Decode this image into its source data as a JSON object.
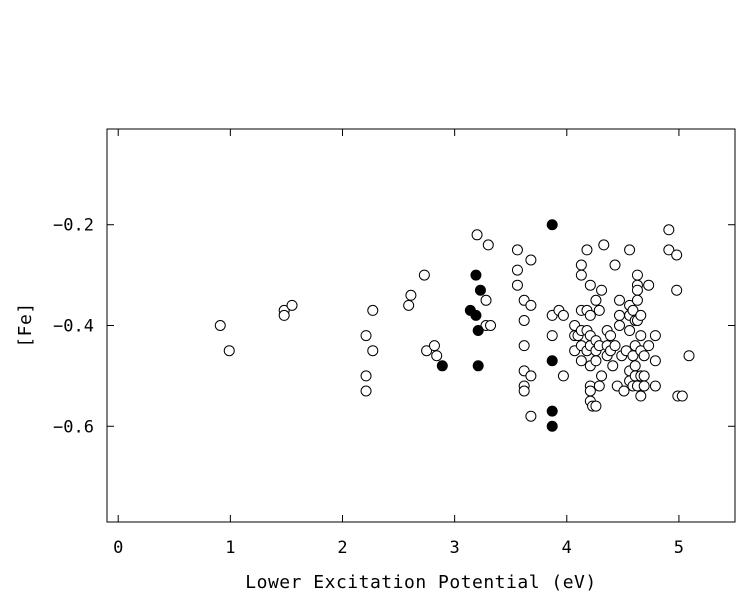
{
  "chart_data": {
    "type": "scatter",
    "title": "",
    "xlabel": "Lower Excitation Potential (eV)",
    "ylabel": "[Fe]",
    "xlim": [
      -0.1,
      5.5
    ],
    "ylim": [
      -0.79,
      -0.01
    ],
    "x_ticks": [
      0,
      1,
      2,
      3,
      4,
      5
    ],
    "x_tick_labels": [
      "0",
      "1",
      "2",
      "3",
      "4",
      "5"
    ],
    "y_ticks": [
      -0.2,
      -0.4,
      -0.6
    ],
    "y_tick_labels": [
      "−0.2",
      "−0.4",
      "−0.6"
    ],
    "grid": false,
    "legend": "none",
    "series": [
      {
        "marker": "open-circle",
        "color": "#000000",
        "points": [
          [
            0.91,
            -0.4
          ],
          [
            0.99,
            -0.45
          ],
          [
            1.48,
            -0.37
          ],
          [
            1.48,
            -0.38
          ],
          [
            1.55,
            -0.36
          ],
          [
            2.21,
            -0.42
          ],
          [
            2.21,
            -0.5
          ],
          [
            2.21,
            -0.53
          ],
          [
            2.27,
            -0.37
          ],
          [
            2.27,
            -0.45
          ],
          [
            2.59,
            -0.36
          ],
          [
            2.61,
            -0.34
          ],
          [
            2.73,
            -0.3
          ],
          [
            2.75,
            -0.45
          ],
          [
            2.82,
            -0.44
          ],
          [
            2.84,
            -0.46
          ],
          [
            3.2,
            -0.22
          ],
          [
            3.28,
            -0.35
          ],
          [
            3.28,
            -0.4
          ],
          [
            3.3,
            -0.24
          ],
          [
            3.32,
            -0.4
          ],
          [
            3.56,
            -0.25
          ],
          [
            3.56,
            -0.29
          ],
          [
            3.56,
            -0.32
          ],
          [
            3.62,
            -0.35
          ],
          [
            3.62,
            -0.39
          ],
          [
            3.62,
            -0.44
          ],
          [
            3.62,
            -0.49
          ],
          [
            3.62,
            -0.52
          ],
          [
            3.62,
            -0.53
          ],
          [
            3.68,
            -0.27
          ],
          [
            3.68,
            -0.36
          ],
          [
            3.68,
            -0.5
          ],
          [
            3.68,
            -0.58
          ],
          [
            3.87,
            -0.38
          ],
          [
            3.87,
            -0.42
          ],
          [
            3.93,
            -0.37
          ],
          [
            3.97,
            -0.38
          ],
          [
            3.97,
            -0.5
          ],
          [
            4.07,
            -0.4
          ],
          [
            4.07,
            -0.42
          ],
          [
            4.07,
            -0.45
          ],
          [
            4.1,
            -0.42
          ],
          [
            4.13,
            -0.28
          ],
          [
            4.13,
            -0.3
          ],
          [
            4.13,
            -0.37
          ],
          [
            4.13,
            -0.41
          ],
          [
            4.13,
            -0.44
          ],
          [
            4.13,
            -0.47
          ],
          [
            4.18,
            -0.25
          ],
          [
            4.18,
            -0.37
          ],
          [
            4.18,
            -0.41
          ],
          [
            4.18,
            -0.45
          ],
          [
            4.21,
            -0.32
          ],
          [
            4.21,
            -0.38
          ],
          [
            4.21,
            -0.42
          ],
          [
            4.21,
            -0.44
          ],
          [
            4.21,
            -0.48
          ],
          [
            4.21,
            -0.52
          ],
          [
            4.21,
            -0.53
          ],
          [
            4.21,
            -0.55
          ],
          [
            4.23,
            -0.56
          ],
          [
            4.26,
            -0.35
          ],
          [
            4.26,
            -0.43
          ],
          [
            4.26,
            -0.45
          ],
          [
            4.26,
            -0.47
          ],
          [
            4.26,
            -0.56
          ],
          [
            4.29,
            -0.37
          ],
          [
            4.29,
            -0.44
          ],
          [
            4.29,
            -0.52
          ],
          [
            4.31,
            -0.33
          ],
          [
            4.31,
            -0.5
          ],
          [
            4.33,
            -0.24
          ],
          [
            4.36,
            -0.41
          ],
          [
            4.36,
            -0.44
          ],
          [
            4.36,
            -0.46
          ],
          [
            4.39,
            -0.42
          ],
          [
            4.39,
            -0.45
          ],
          [
            4.41,
            -0.48
          ],
          [
            4.43,
            -0.28
          ],
          [
            4.43,
            -0.44
          ],
          [
            4.45,
            -0.52
          ],
          [
            4.47,
            -0.35
          ],
          [
            4.47,
            -0.38
          ],
          [
            4.47,
            -0.4
          ],
          [
            4.49,
            -0.46
          ],
          [
            4.51,
            -0.53
          ],
          [
            4.53,
            -0.45
          ],
          [
            4.56,
            -0.25
          ],
          [
            4.56,
            -0.36
          ],
          [
            4.56,
            -0.38
          ],
          [
            4.56,
            -0.41
          ],
          [
            4.56,
            -0.49
          ],
          [
            4.56,
            -0.51
          ],
          [
            4.59,
            -0.37
          ],
          [
            4.59,
            -0.46
          ],
          [
            4.59,
            -0.52
          ],
          [
            4.61,
            -0.39
          ],
          [
            4.61,
            -0.44
          ],
          [
            4.61,
            -0.48
          ],
          [
            4.61,
            -0.5
          ],
          [
            4.63,
            -0.3
          ],
          [
            4.63,
            -0.32
          ],
          [
            4.63,
            -0.33
          ],
          [
            4.63,
            -0.35
          ],
          [
            4.63,
            -0.39
          ],
          [
            4.63,
            -0.52
          ],
          [
            4.66,
            -0.38
          ],
          [
            4.66,
            -0.42
          ],
          [
            4.66,
            -0.45
          ],
          [
            4.66,
            -0.5
          ],
          [
            4.66,
            -0.54
          ],
          [
            4.69,
            -0.46
          ],
          [
            4.69,
            -0.5
          ],
          [
            4.69,
            -0.52
          ],
          [
            4.73,
            -0.32
          ],
          [
            4.73,
            -0.44
          ],
          [
            4.79,
            -0.42
          ],
          [
            4.79,
            -0.47
          ],
          [
            4.79,
            -0.52
          ],
          [
            4.91,
            -0.21
          ],
          [
            4.91,
            -0.25
          ],
          [
            4.98,
            -0.26
          ],
          [
            4.98,
            -0.33
          ],
          [
            4.99,
            -0.54
          ],
          [
            5.03,
            -0.54
          ],
          [
            5.09,
            -0.46
          ]
        ]
      },
      {
        "marker": "filled-circle",
        "color": "#000000",
        "points": [
          [
            2.89,
            -0.48
          ],
          [
            3.14,
            -0.37
          ],
          [
            3.19,
            -0.3
          ],
          [
            3.19,
            -0.38
          ],
          [
            3.21,
            -0.41
          ],
          [
            3.21,
            -0.48
          ],
          [
            3.23,
            -0.33
          ],
          [
            3.87,
            -0.2
          ],
          [
            3.87,
            -0.47
          ],
          [
            3.87,
            -0.57
          ],
          [
            3.87,
            -0.6
          ]
        ]
      }
    ]
  }
}
